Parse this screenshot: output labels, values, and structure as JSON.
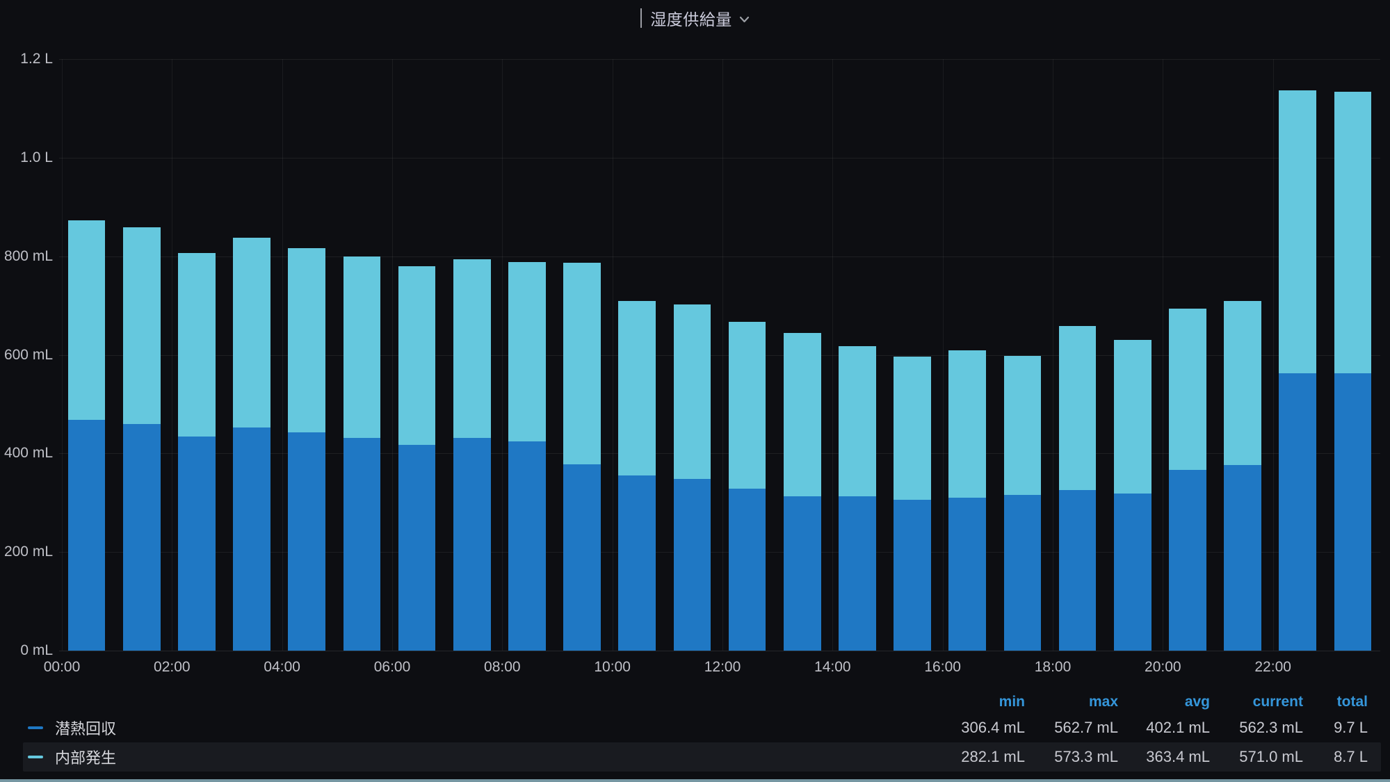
{
  "title": {
    "text": "湿度供給量",
    "chevron_icon": "chevron-down-icon"
  },
  "colors": {
    "background": "#0d0e12",
    "series_blue": "#1f78c4",
    "series_cyan": "#65c8de",
    "stat_header_blue": "#3596da",
    "legend_row_highlight": "#191b20",
    "bottom_accent": "#7596a2"
  },
  "chart_data": {
    "type": "bar",
    "stacked": true,
    "title": "湿度供給量",
    "xlabel": "",
    "ylabel": "",
    "ylim": [
      0,
      1200
    ],
    "grid": true,
    "legend_position": "bottom-table",
    "categories": [
      "00:00",
      "01:00",
      "02:00",
      "03:00",
      "04:00",
      "05:00",
      "06:00",
      "07:00",
      "08:00",
      "09:00",
      "10:00",
      "11:00",
      "12:00",
      "13:00",
      "14:00",
      "15:00",
      "16:00",
      "17:00",
      "18:00",
      "19:00",
      "20:00",
      "21:00",
      "22:00",
      "23:00"
    ],
    "series": [
      {
        "name": "潜熱回収",
        "color": "#1f78c4",
        "values": [
          468,
          460,
          434,
          452,
          443,
          431,
          418,
          431,
          425,
          378,
          355,
          348,
          328,
          313,
          313,
          306,
          310,
          316,
          326,
          319,
          366,
          376,
          562.7,
          562.3
        ]
      },
      {
        "name": "内部発生",
        "color": "#65c8de",
        "values": [
          405,
          399,
          373,
          386,
          373,
          369,
          362,
          363,
          363,
          409,
          354,
          354,
          339,
          332,
          305,
          290,
          299,
          282,
          333,
          311,
          328,
          333,
          573.3,
          571.0
        ]
      }
    ],
    "y_ticks": [
      {
        "value": 0,
        "label": "0 mL"
      },
      {
        "value": 200,
        "label": "200 mL"
      },
      {
        "value": 400,
        "label": "400 mL"
      },
      {
        "value": 600,
        "label": "600 mL"
      },
      {
        "value": 800,
        "label": "800 mL"
      },
      {
        "value": 1000,
        "label": "1.0 L"
      },
      {
        "value": 1200,
        "label": "1.2 L"
      }
    ],
    "x_tick_labels": [
      "00:00",
      "02:00",
      "04:00",
      "06:00",
      "08:00",
      "10:00",
      "12:00",
      "14:00",
      "16:00",
      "18:00",
      "20:00",
      "22:00"
    ]
  },
  "legend": {
    "stat_headers": [
      "min",
      "max",
      "avg",
      "current",
      "total"
    ],
    "rows": [
      {
        "label": "潜熱回収",
        "color": "#1f78c4",
        "highlighted": false,
        "stats": [
          "306.4 mL",
          "562.7 mL",
          "402.1 mL",
          "562.3 mL",
          "9.7 L"
        ]
      },
      {
        "label": "内部発生",
        "color": "#65c8de",
        "highlighted": true,
        "stats": [
          "282.1 mL",
          "573.3 mL",
          "363.4 mL",
          "571.0 mL",
          "8.7 L"
        ]
      }
    ]
  }
}
